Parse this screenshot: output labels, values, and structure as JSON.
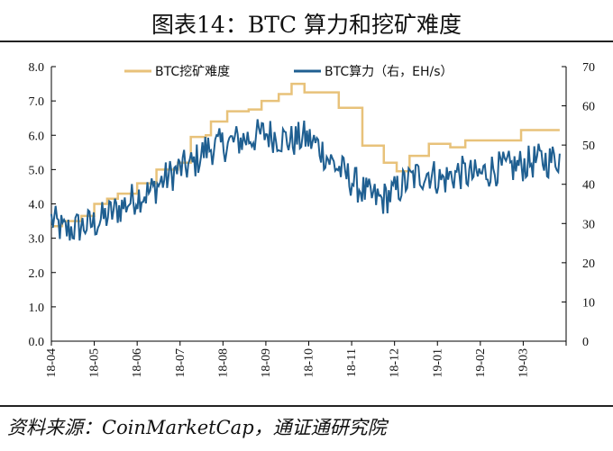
{
  "header": {
    "title": "图表14：BTC 算力和挖矿难度"
  },
  "footer": {
    "source": "资料来源：CoinMarketCap，通证通研究院"
  },
  "chart_data": {
    "type": "line",
    "x": [
      "18-04",
      "18-05",
      "18-06",
      "18-07",
      "18-08",
      "18-09",
      "18-10",
      "18-11",
      "18-12",
      "19-01",
      "19-02",
      "19-03"
    ],
    "x_tick_labels": [
      "18-04",
      "18-05",
      "18-06",
      "18-07",
      "18-08",
      "18-09",
      "18-10",
      "18-11",
      "18-12",
      "19-01",
      "19-02",
      "19-03"
    ],
    "y_left_ticks": [
      "0.0",
      "1.0",
      "2.0",
      "3.0",
      "4.0",
      "5.0",
      "6.0",
      "7.0",
      "8.0"
    ],
    "y_right_ticks": [
      "0",
      "10",
      "20",
      "30",
      "40",
      "50",
      "60",
      "70"
    ],
    "ylim_left": [
      0,
      8
    ],
    "ylim_right": [
      0,
      70
    ],
    "legend": {
      "placement": "top"
    },
    "colors": {
      "difficulty": "#e8c27a",
      "hashrate": "#1f5f91",
      "axis": "#000000"
    },
    "series": [
      {
        "name": "BTC挖矿难度",
        "axis": "left",
        "color": "#e8c27a",
        "steps": [
          [
            0.0,
            3.35
          ],
          [
            0.25,
            3.5
          ],
          [
            0.7,
            3.65
          ],
          [
            1.0,
            4.0
          ],
          [
            1.3,
            4.15
          ],
          [
            1.55,
            4.3
          ],
          [
            2.0,
            4.6
          ],
          [
            2.45,
            5.0
          ],
          [
            2.95,
            5.2
          ],
          [
            3.25,
            5.95
          ],
          [
            3.6,
            6.0
          ],
          [
            3.72,
            6.4
          ],
          [
            4.1,
            6.7
          ],
          [
            4.6,
            6.75
          ],
          [
            4.9,
            7.0
          ],
          [
            5.3,
            7.2
          ],
          [
            5.6,
            7.5
          ],
          [
            5.9,
            7.25
          ],
          [
            6.7,
            6.8
          ],
          [
            7.25,
            5.7
          ],
          [
            7.75,
            5.2
          ],
          [
            8.05,
            4.95
          ],
          [
            8.35,
            5.4
          ],
          [
            8.8,
            5.75
          ],
          [
            9.3,
            5.65
          ],
          [
            9.65,
            5.85
          ],
          [
            10.4,
            5.85
          ],
          [
            10.95,
            6.15
          ],
          [
            11.85,
            6.15
          ]
        ]
      },
      {
        "name": "BTC算力（右，EH/s）",
        "axis": "right",
        "color": "#1f5f91",
        "trend": [
          [
            0.0,
            31
          ],
          [
            0.3,
            28
          ],
          [
            0.6,
            29
          ],
          [
            1.0,
            30
          ],
          [
            1.3,
            32
          ],
          [
            1.6,
            34
          ],
          [
            2.0,
            37
          ],
          [
            2.3,
            38
          ],
          [
            2.6,
            41
          ],
          [
            3.0,
            44
          ],
          [
            3.3,
            45
          ],
          [
            3.6,
            49
          ],
          [
            4.0,
            50
          ],
          [
            4.3,
            51
          ],
          [
            4.7,
            52
          ],
          [
            5.0,
            53
          ],
          [
            5.3,
            52
          ],
          [
            5.6,
            51
          ],
          [
            5.9,
            52
          ],
          [
            6.2,
            50
          ],
          [
            6.5,
            46
          ],
          [
            6.8,
            43
          ],
          [
            7.1,
            40
          ],
          [
            7.4,
            37
          ],
          [
            7.7,
            36
          ],
          [
            8.0,
            38
          ],
          [
            8.2,
            40
          ],
          [
            8.5,
            42
          ],
          [
            8.8,
            43
          ],
          [
            9.1,
            41
          ],
          [
            9.5,
            43
          ],
          [
            9.9,
            42
          ],
          [
            10.3,
            44
          ],
          [
            10.6,
            44
          ],
          [
            11.0,
            45
          ],
          [
            11.3,
            46
          ],
          [
            11.6,
            46
          ],
          [
            11.85,
            47
          ]
        ],
        "noise_amplitude": 4.5
      }
    ]
  }
}
